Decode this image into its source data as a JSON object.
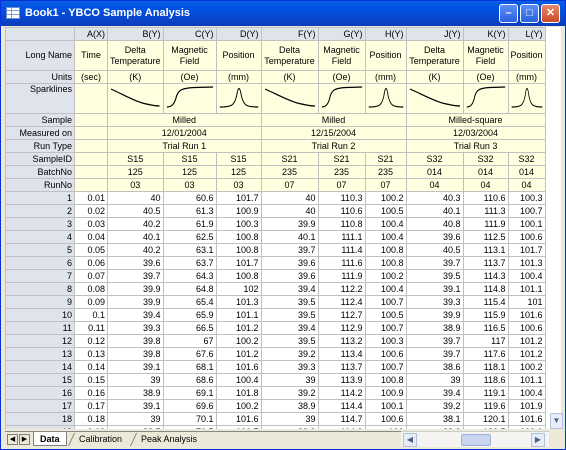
{
  "window": {
    "title": "Book1 - YBCO Sample Analysis"
  },
  "columns": [
    {
      "header": "A(X)",
      "long_name": "Time",
      "units": "(sec)",
      "spark": ""
    },
    {
      "header": "B(Y)",
      "long_name": "Delta Temperature",
      "units": "(K)",
      "spark": "decay"
    },
    {
      "header": "C(Y)",
      "long_name": "Magnetic Field",
      "units": "(Oe)",
      "spark": "rise"
    },
    {
      "header": "D(Y)",
      "long_name": "Position",
      "units": "(mm)",
      "spark": "peak"
    },
    {
      "header": "F(Y)",
      "long_name": "Delta Temperature",
      "units": "(K)",
      "spark": "decay"
    },
    {
      "header": "G(Y)",
      "long_name": "Magnetic Field",
      "units": "(Oe)",
      "spark": "rise"
    },
    {
      "header": "H(Y)",
      "long_name": "Position",
      "units": "(mm)",
      "spark": "peak"
    },
    {
      "header": "J(Y)",
      "long_name": "Delta Temperature",
      "units": "(K)",
      "spark": "decay"
    },
    {
      "header": "K(Y)",
      "long_name": "Magnetic Field",
      "units": "(Oe)",
      "spark": "rise"
    },
    {
      "header": "L(Y)",
      "long_name": "Position",
      "units": "(mm)",
      "spark": "peak"
    }
  ],
  "row_labels": {
    "long_name": "Long Name",
    "units": "Units",
    "sparklines": "Sparklines",
    "sample": "Sample",
    "measured_on": "Measured on",
    "run_type": "Run Type",
    "sample_id": "SampleID",
    "batch_no": "BatchNo",
    "run_no": "RunNo"
  },
  "groups": [
    {
      "sample": "Milled",
      "measured_on": "12/01/2004",
      "run_type": "Trial Run 1",
      "sample_id": "S15",
      "batch_no": "125",
      "run_no": "03"
    },
    {
      "sample": "Milled",
      "measured_on": "12/15/2004",
      "run_type": "Trial Run 2",
      "sample_id": "S21",
      "batch_no": "235",
      "run_no": "07"
    },
    {
      "sample": "Milled-square",
      "measured_on": "12/03/2004",
      "run_type": "Trial Run 3",
      "sample_id": "S32",
      "batch_no": "014",
      "run_no": "04"
    }
  ],
  "rows": [
    [
      "0.01",
      "40",
      "60.6",
      "101.7",
      "40",
      "110.3",
      "100.2",
      "40.3",
      "110.6",
      "100.3"
    ],
    [
      "0.02",
      "40.5",
      "61.3",
      "100.9",
      "40",
      "110.6",
      "100.5",
      "40.1",
      "111.3",
      "100.7"
    ],
    [
      "0.03",
      "40.2",
      "61.9",
      "100.3",
      "39.9",
      "110.8",
      "100.4",
      "40.8",
      "111.9",
      "100.1"
    ],
    [
      "0.04",
      "40.1",
      "62.5",
      "100.8",
      "40.1",
      "111.1",
      "100.4",
      "39.6",
      "112.5",
      "100.6"
    ],
    [
      "0.05",
      "40.2",
      "63.1",
      "100.8",
      "39.7",
      "111.4",
      "100.8",
      "40.5",
      "113.1",
      "101.7"
    ],
    [
      "0.06",
      "39.6",
      "63.7",
      "101.7",
      "39.6",
      "111.6",
      "100.8",
      "39.7",
      "113.7",
      "101.3"
    ],
    [
      "0.07",
      "39.7",
      "64.3",
      "100.8",
      "39.6",
      "111.9",
      "100.2",
      "39.5",
      "114.3",
      "100.4"
    ],
    [
      "0.08",
      "39.9",
      "64.8",
      "102",
      "39.4",
      "112.2",
      "100.4",
      "39.1",
      "114.8",
      "101.1"
    ],
    [
      "0.09",
      "39.9",
      "65.4",
      "101.3",
      "39.5",
      "112.4",
      "100.7",
      "39.3",
      "115.4",
      "101"
    ],
    [
      "0.1",
      "39.4",
      "65.9",
      "101.1",
      "39.5",
      "112.7",
      "100.5",
      "39.9",
      "115.9",
      "101.6"
    ],
    [
      "0.11",
      "39.3",
      "66.5",
      "101.2",
      "39.4",
      "112.9",
      "100.7",
      "38.9",
      "116.5",
      "100.6"
    ],
    [
      "0.12",
      "39.8",
      "67",
      "100.2",
      "39.5",
      "113.2",
      "100.3",
      "39.7",
      "117",
      "101.2"
    ],
    [
      "0.13",
      "39.8",
      "67.6",
      "101.2",
      "39.2",
      "113.4",
      "100.6",
      "39.7",
      "117.6",
      "101.2"
    ],
    [
      "0.14",
      "39.1",
      "68.1",
      "101.6",
      "39.3",
      "113.7",
      "100.7",
      "38.6",
      "118.1",
      "100.2"
    ],
    [
      "0.15",
      "39",
      "68.6",
      "100.4",
      "39",
      "113.9",
      "100.8",
      "39",
      "118.6",
      "101.1"
    ],
    [
      "0.16",
      "38.9",
      "69.1",
      "101.8",
      "39.2",
      "114.2",
      "100.9",
      "39.4",
      "119.1",
      "100.4"
    ],
    [
      "0.17",
      "39.1",
      "69.6",
      "100.2",
      "38.9",
      "114.4",
      "100.1",
      "39.2",
      "119.6",
      "101.9"
    ],
    [
      "0.18",
      "39",
      "70.1",
      "101.6",
      "39",
      "114.7",
      "100.6",
      "38.1",
      "120.1",
      "101.6"
    ],
    [
      "0.19",
      "38.5",
      "70.5",
      "100.7",
      "38.9",
      "114.9",
      "100",
      "38.2",
      "120.5",
      "100.6"
    ]
  ],
  "tabs": [
    {
      "label": "Data",
      "active": true
    },
    {
      "label": "Calibration",
      "active": false
    },
    {
      "label": "Peak Analysis",
      "active": false
    }
  ],
  "icons": [
    "app-icon",
    "minimize-icon",
    "maximize-icon",
    "close-icon",
    "scroll-left-icon",
    "scroll-right-icon",
    "scroll-down-icon"
  ]
}
